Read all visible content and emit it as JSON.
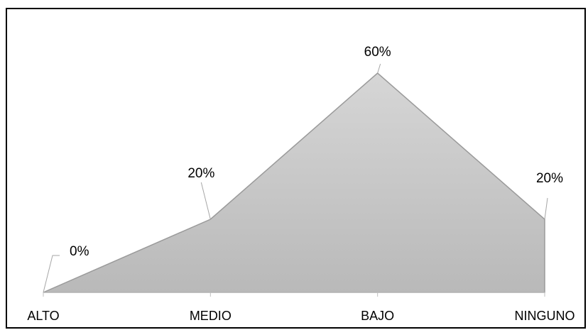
{
  "chart_data": {
    "type": "area",
    "categories": [
      "ALTO",
      "MEDIO",
      "BAJO",
      "NINGUNO"
    ],
    "values": [
      0,
      20,
      60,
      20
    ],
    "data_labels": [
      "0%",
      "20%",
      "60%",
      "20%"
    ],
    "title": "",
    "xlabel": "",
    "ylabel": "",
    "ylim": [
      0,
      60
    ],
    "grid": false,
    "legend": "none",
    "colors": {
      "fill_top": "#d6d6d6",
      "fill_bottom": "#b9b9b9",
      "stroke": "#9a9a9a",
      "axis": "#bfbfbf",
      "leader": "#a6a6a6"
    }
  }
}
